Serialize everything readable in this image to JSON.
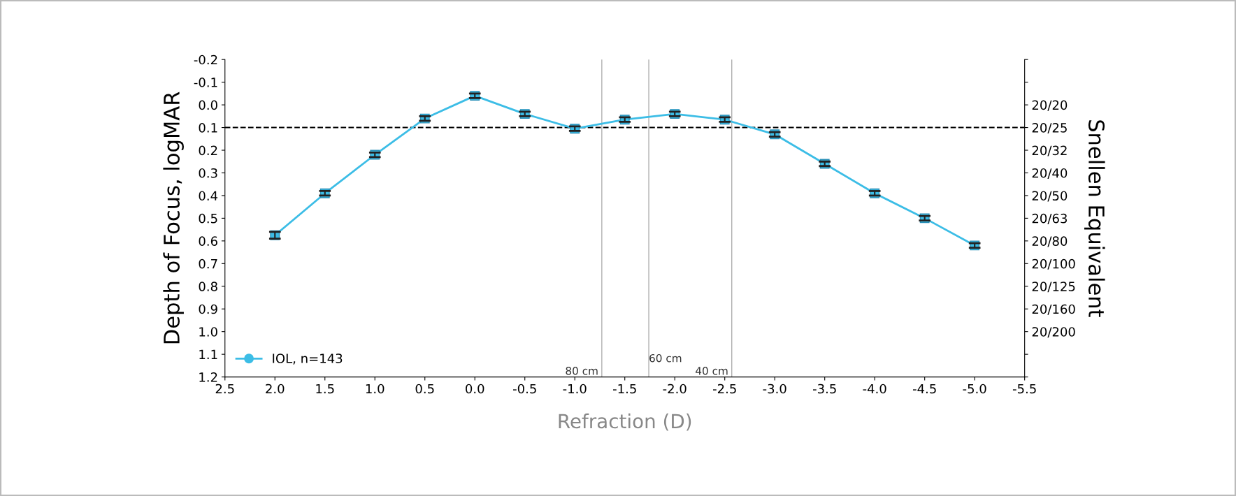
{
  "chart_data": {
    "type": "line",
    "xlabel": "Refraction (D)",
    "ylabel": "Depth of Focus, logMAR",
    "y2label": "Snellen Equivalent",
    "x": [
      2.0,
      1.5,
      1.0,
      0.5,
      0.0,
      -0.5,
      -1.0,
      -1.5,
      -2.0,
      -2.5,
      -3.0,
      -3.5,
      -4.0,
      -4.5,
      -5.0
    ],
    "series": [
      {
        "name": "IOL, n=143",
        "color": "#3cbde6",
        "values": [
          0.575,
          0.39,
          0.22,
          0.06,
          -0.04,
          0.04,
          0.105,
          0.065,
          0.04,
          0.065,
          0.13,
          0.26,
          0.39,
          0.5,
          0.62
        ],
        "errors": [
          0.015,
          0.01,
          0.01,
          0.01,
          0.01,
          0.01,
          0.01,
          0.01,
          0.01,
          0.01,
          0.01,
          0.01,
          0.01,
          0.01,
          0.01
        ]
      }
    ],
    "xlim": [
      2.5,
      -5.5
    ],
    "xticks": [
      {
        "value": 2.5,
        "label": "2.5"
      },
      {
        "value": 2.0,
        "label": "2.0"
      },
      {
        "value": 1.5,
        "label": "1.5"
      },
      {
        "value": 1.0,
        "label": "1.0"
      },
      {
        "value": 0.5,
        "label": "0.5"
      },
      {
        "value": 0.0,
        "label": "0.0"
      },
      {
        "value": -0.5,
        "label": "-0.5"
      },
      {
        "value": -1.0,
        "label": "-1.0"
      },
      {
        "value": -1.5,
        "label": "-1.5"
      },
      {
        "value": -2.0,
        "label": "-2.0"
      },
      {
        "value": -2.5,
        "label": "-2.5"
      },
      {
        "value": -3.0,
        "label": "-3.0"
      },
      {
        "value": -3.5,
        "label": "-3.5"
      },
      {
        "value": -4.0,
        "label": "-4.0"
      },
      {
        "value": -4.5,
        "label": "-4.5"
      },
      {
        "value": -5.0,
        "label": "-5.0"
      },
      {
        "value": -5.5,
        "label": "-5.5"
      }
    ],
    "ylim": [
      1.2,
      -0.2
    ],
    "yticks": [
      {
        "value": -0.2,
        "label": "-0.2"
      },
      {
        "value": -0.1,
        "label": "-0.1"
      },
      {
        "value": 0.0,
        "label": "0.0"
      },
      {
        "value": 0.1,
        "label": "0.1"
      },
      {
        "value": 0.2,
        "label": "0.2"
      },
      {
        "value": 0.3,
        "label": "0.3"
      },
      {
        "value": 0.4,
        "label": "0.4"
      },
      {
        "value": 0.5,
        "label": "0.5"
      },
      {
        "value": 0.6,
        "label": "0.6"
      },
      {
        "value": 0.7,
        "label": "0.7"
      },
      {
        "value": 0.8,
        "label": "0.8"
      },
      {
        "value": 0.9,
        "label": "0.9"
      },
      {
        "value": 1.0,
        "label": "1.0"
      },
      {
        "value": 1.1,
        "label": "1.1"
      },
      {
        "value": 1.2,
        "label": "1.2"
      }
    ],
    "y2_categories": [
      null,
      null,
      "20/20",
      "20/25",
      "20/32",
      "20/40",
      "20/50",
      "20/63",
      "20/80",
      "20/100",
      "20/125",
      "20/160",
      "20/200",
      null,
      null
    ],
    "ref_lines": [
      {
        "axis": "y",
        "value": 0.1,
        "color": "#000000",
        "line_style": "dashed"
      },
      {
        "axis": "x",
        "value": -1.27,
        "label": "80 cm",
        "color": "#b0b0b0",
        "line_style": "solid"
      },
      {
        "axis": "x",
        "value": -1.74,
        "label": "60 cm",
        "color": "#b0b0b0",
        "line_style": "solid"
      },
      {
        "axis": "x",
        "value": -2.57,
        "label": "40 cm",
        "color": "#b0b0b0",
        "line_style": "solid"
      }
    ],
    "marker": "square",
    "line_style": "solid",
    "grid": false,
    "legend": "bottom left"
  }
}
